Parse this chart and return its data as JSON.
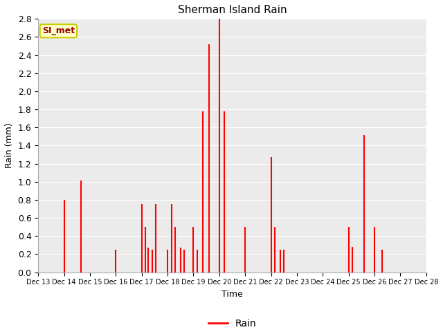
{
  "title": "Sherman Island Rain",
  "xlabel": "Time",
  "ylabel": "Rain (mm)",
  "line_color": "#ff0000",
  "legend_label": "Rain",
  "annotation_text": "SI_met",
  "annotation_bg": "#ffffcc",
  "annotation_border": "#cccc00",
  "ylim": [
    0.0,
    2.8
  ],
  "yticks": [
    0.0,
    0.2,
    0.4,
    0.6,
    0.8,
    1.0,
    1.2,
    1.4,
    1.6,
    1.8,
    2.0,
    2.2,
    2.4,
    2.6,
    2.8
  ],
  "bg_color": "#ebebeb",
  "time_data": [
    13.0,
    13.3,
    14.0,
    14.3,
    14.65,
    15.0,
    16.0,
    16.3,
    17.0,
    17.15,
    17.25,
    17.4,
    17.55,
    17.7,
    18.0,
    18.15,
    18.3,
    18.5,
    18.65,
    18.8,
    19.0,
    19.15,
    19.35,
    19.6,
    19.75,
    20.0,
    20.2,
    20.4,
    21.0,
    21.3,
    22.0,
    22.15,
    22.35,
    22.5,
    22.65,
    23.0,
    24.0,
    25.0,
    25.15,
    25.3,
    25.6,
    25.75,
    26.0,
    26.3,
    26.5,
    27.0,
    28.0
  ],
  "rain_data": [
    0.25,
    0.0,
    0.8,
    0.0,
    1.01,
    0.0,
    0.25,
    0.0,
    0.75,
    0.5,
    0.27,
    0.25,
    0.75,
    0.0,
    0.25,
    0.75,
    0.5,
    0.27,
    0.25,
    0.0,
    0.5,
    0.25,
    1.78,
    2.52,
    0.0,
    2.8,
    1.78,
    0.0,
    0.5,
    0.0,
    1.27,
    0.5,
    0.25,
    0.25,
    0.0,
    0.0,
    0.0,
    0.5,
    0.28,
    0.0,
    1.52,
    0.0,
    0.5,
    0.25,
    0.0,
    0.0,
    0.0
  ],
  "xtick_positions": [
    13,
    14,
    15,
    16,
    17,
    18,
    19,
    20,
    21,
    22,
    23,
    24,
    25,
    26,
    27,
    28
  ],
  "xtick_labels": [
    "Dec 13",
    "Dec 14",
    "Dec 15",
    "Dec 16",
    "Dec 17",
    "Dec 18",
    "Dec 19",
    "Dec 20",
    "Dec 21",
    "Dec 22",
    "Dec 23",
    "Dec 24",
    "Dec 25",
    "Dec 26",
    "Dec 27",
    "Dec 28"
  ]
}
